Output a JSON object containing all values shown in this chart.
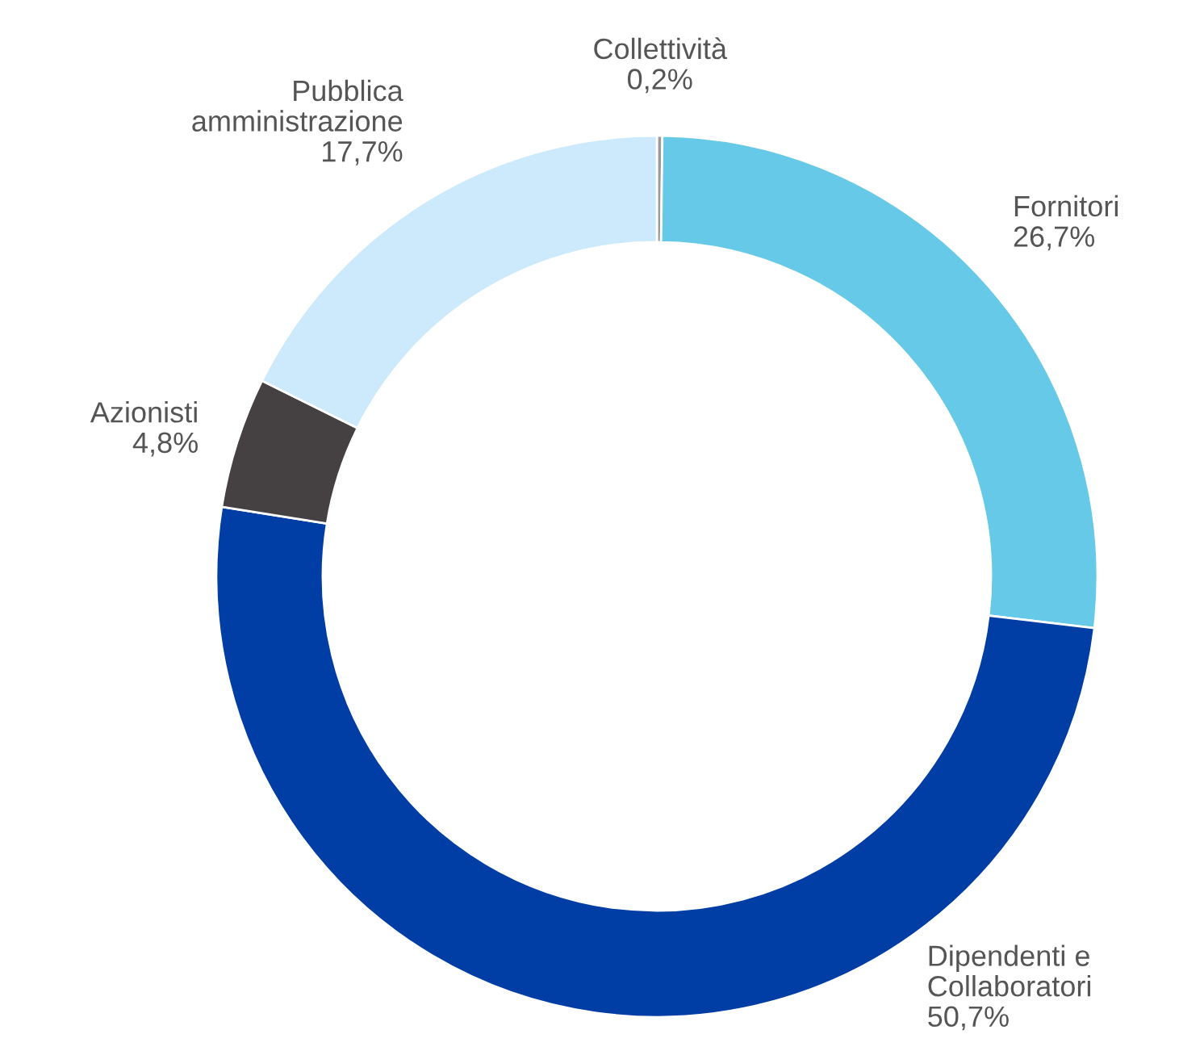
{
  "chart_data": {
    "type": "donut",
    "categories": [
      "Collettività",
      "Fornitori",
      "Dipendenti e Collaboratori",
      "Azionisti",
      "Pubblica amministrazione"
    ],
    "values": [
      0.2,
      26.7,
      50.7,
      4.8,
      17.7
    ],
    "value_labels": [
      "0,2%",
      "26,7%",
      "50,7%",
      "4,8%",
      "17,7%"
    ],
    "colors": [
      "#9a9a9a",
      "#66c9e8",
      "#003da5",
      "#454042",
      "#cdeafc"
    ],
    "legend": false
  }
}
